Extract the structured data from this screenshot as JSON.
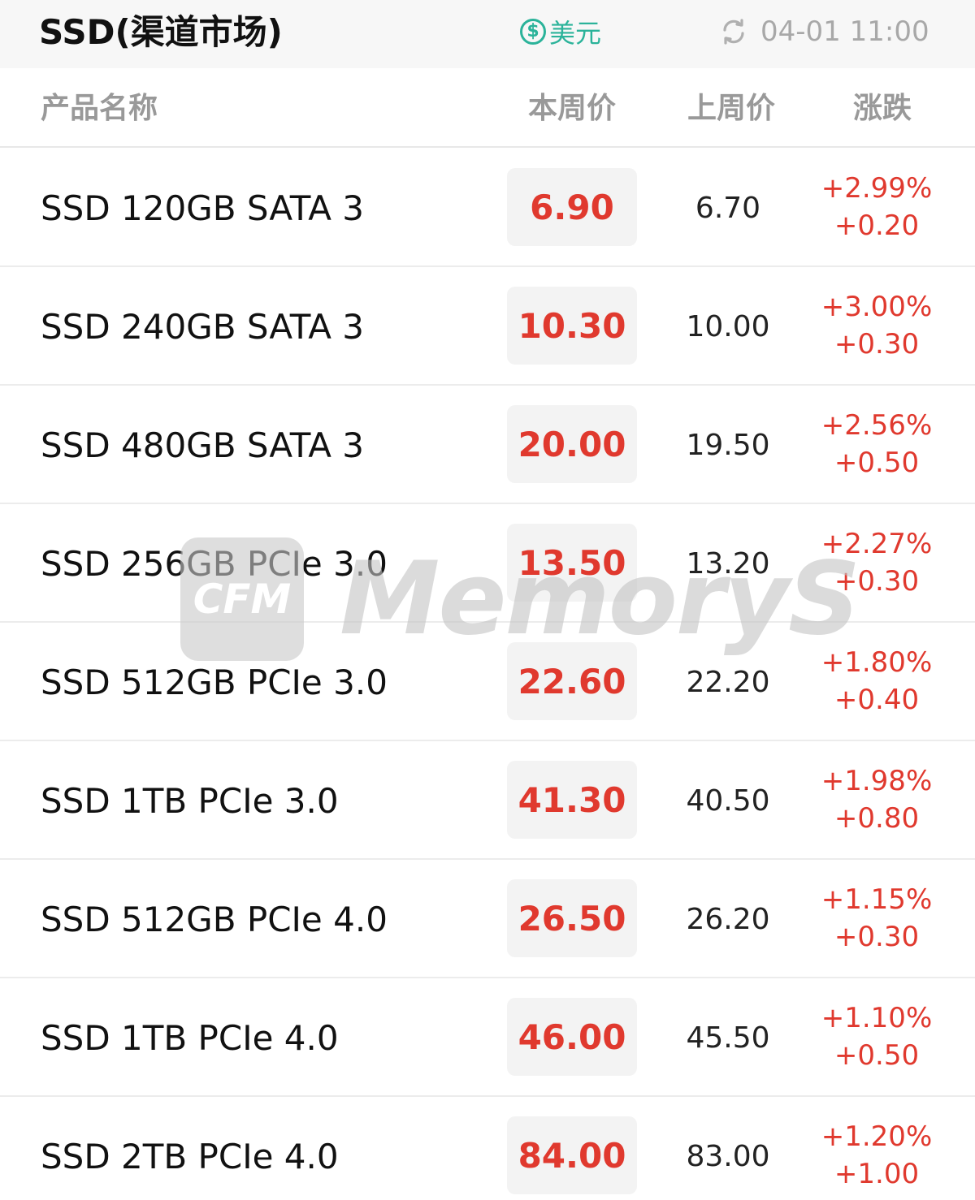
{
  "header": {
    "title": "SSD(渠道市场)",
    "currency_symbol": "$",
    "currency_label": "美元",
    "updated_time": "04-01 11:00",
    "icons": {
      "currency": "dollar-coin-icon",
      "refresh": "refresh-icon"
    }
  },
  "columns": {
    "name": "产品名称",
    "this_week": "本周价",
    "last_week": "上周价",
    "change": "涨跌"
  },
  "rows": [
    {
      "name": "SSD 120GB SATA 3",
      "this_week": "6.90",
      "last_week": "6.70",
      "change_pct": "+2.99%",
      "change_abs": "+0.20"
    },
    {
      "name": "SSD 240GB SATA 3",
      "this_week": "10.30",
      "last_week": "10.00",
      "change_pct": "+3.00%",
      "change_abs": "+0.30"
    },
    {
      "name": "SSD 480GB SATA 3",
      "this_week": "20.00",
      "last_week": "19.50",
      "change_pct": "+2.56%",
      "change_abs": "+0.50"
    },
    {
      "name": "SSD 256GB PCIe 3.0",
      "this_week": "13.50",
      "last_week": "13.20",
      "change_pct": "+2.27%",
      "change_abs": "+0.30"
    },
    {
      "name": "SSD 512GB PCIe 3.0",
      "this_week": "22.60",
      "last_week": "22.20",
      "change_pct": "+1.80%",
      "change_abs": "+0.40"
    },
    {
      "name": "SSD 1TB PCIe 3.0",
      "this_week": "41.30",
      "last_week": "40.50",
      "change_pct": "+1.98%",
      "change_abs": "+0.80"
    },
    {
      "name": "SSD 512GB PCIe 4.0",
      "this_week": "26.50",
      "last_week": "26.20",
      "change_pct": "+1.15%",
      "change_abs": "+0.30"
    },
    {
      "name": "SSD 1TB PCIe 4.0",
      "this_week": "46.00",
      "last_week": "45.50",
      "change_pct": "+1.10%",
      "change_abs": "+0.50"
    },
    {
      "name": "SSD 2TB PCIe 4.0",
      "this_week": "84.00",
      "last_week": "83.00",
      "change_pct": "+1.20%",
      "change_abs": "+1.00"
    }
  ],
  "watermark": {
    "logo_text": "CFM",
    "word": "MemoryS"
  },
  "colors": {
    "up": "#e0392e",
    "accent": "#2bb39a",
    "muted": "#a8a8a8",
    "price_box": "#f3f3f3"
  }
}
